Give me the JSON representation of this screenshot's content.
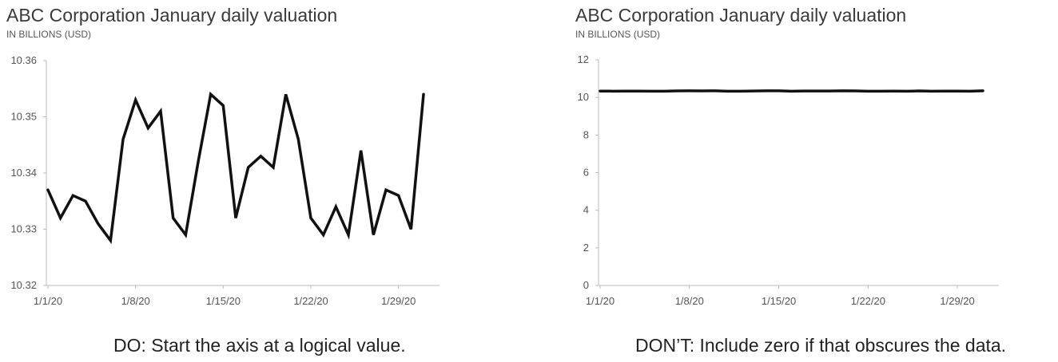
{
  "chart_data": [
    {
      "type": "line",
      "title": "ABC Corporation January daily valuation",
      "subtitle": "IN BILLIONS (USD)",
      "x": [
        "1/1/20",
        "1/2/20",
        "1/3/20",
        "1/4/20",
        "1/5/20",
        "1/6/20",
        "1/7/20",
        "1/8/20",
        "1/9/20",
        "1/10/20",
        "1/11/20",
        "1/12/20",
        "1/13/20",
        "1/14/20",
        "1/15/20",
        "1/16/20",
        "1/17/20",
        "1/18/20",
        "1/19/20",
        "1/20/20",
        "1/21/20",
        "1/22/20",
        "1/23/20",
        "1/24/20",
        "1/25/20",
        "1/26/20",
        "1/27/20",
        "1/28/20",
        "1/29/20",
        "1/30/20",
        "1/31/20"
      ],
      "series": [
        {
          "values": [
            10.337,
            10.332,
            10.336,
            10.335,
            10.331,
            10.328,
            10.346,
            10.353,
            10.348,
            10.351,
            10.332,
            10.329,
            10.342,
            10.354,
            10.352,
            10.332,
            10.341,
            10.343,
            10.341,
            10.354,
            10.346,
            10.332,
            10.329,
            10.334,
            10.329,
            10.344,
            10.329,
            10.337,
            10.336,
            10.33,
            10.354
          ]
        }
      ],
      "xtick_labels": [
        "1/1/20",
        "1/8/20",
        "1/15/20",
        "1/22/20",
        "1/29/20"
      ],
      "yticks": [
        "10.32",
        "10.33",
        "10.34",
        "10.35",
        "10.36"
      ],
      "ylim": [
        10.32,
        10.36
      ],
      "grid": false,
      "line_color": "#111111"
    },
    {
      "type": "line",
      "title": "ABC Corporation January daily valuation",
      "subtitle": "IN BILLIONS (USD)",
      "x": [
        "1/1/20",
        "1/2/20",
        "1/3/20",
        "1/4/20",
        "1/5/20",
        "1/6/20",
        "1/7/20",
        "1/8/20",
        "1/9/20",
        "1/10/20",
        "1/11/20",
        "1/12/20",
        "1/13/20",
        "1/14/20",
        "1/15/20",
        "1/16/20",
        "1/17/20",
        "1/18/20",
        "1/19/20",
        "1/20/20",
        "1/21/20",
        "1/22/20",
        "1/23/20",
        "1/24/20",
        "1/25/20",
        "1/26/20",
        "1/27/20",
        "1/28/20",
        "1/29/20",
        "1/30/20",
        "1/31/20"
      ],
      "series": [
        {
          "values": [
            10.337,
            10.332,
            10.336,
            10.335,
            10.331,
            10.328,
            10.346,
            10.353,
            10.348,
            10.351,
            10.332,
            10.329,
            10.342,
            10.354,
            10.352,
            10.332,
            10.341,
            10.343,
            10.341,
            10.354,
            10.346,
            10.332,
            10.329,
            10.334,
            10.329,
            10.344,
            10.329,
            10.337,
            10.336,
            10.33,
            10.354
          ]
        }
      ],
      "xtick_labels": [
        "1/1/20",
        "1/8/20",
        "1/15/20",
        "1/22/20",
        "1/29/20"
      ],
      "yticks": [
        "0",
        "2",
        "4",
        "6",
        "8",
        "10",
        "12"
      ],
      "ylim": [
        0,
        12
      ],
      "grid": false,
      "line_color": "#111111"
    }
  ],
  "captions": {
    "left": "DO: Start the axis at a logical value.",
    "right": "DON’T: Include zero if that obscures the data."
  }
}
